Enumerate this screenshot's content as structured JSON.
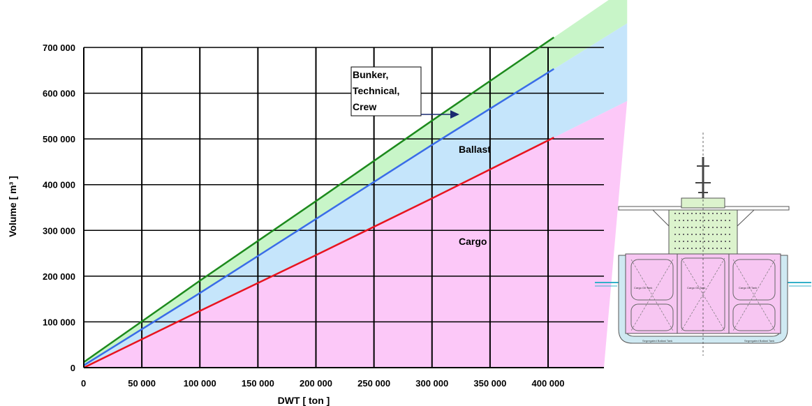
{
  "chart_data": {
    "type": "area",
    "title": "",
    "xlabel": "DWT [ ton ]",
    "ylabel": "Volume [ m³ ]",
    "xlim": [
      0,
      400000
    ],
    "ylim": [
      0,
      700000
    ],
    "x_ticks": [
      0,
      50000,
      100000,
      150000,
      200000,
      250000,
      300000,
      350000,
      400000
    ],
    "x_tick_labels": [
      "0",
      "50 000",
      "100 000",
      "150 000",
      "200 000",
      "250 000",
      "300 000",
      "350 000",
      "400 000"
    ],
    "y_ticks": [
      0,
      100000,
      200000,
      300000,
      400000,
      500000,
      600000,
      700000
    ],
    "y_tick_labels": [
      "0",
      "100 000",
      "200 000",
      "300 000",
      "400 000",
      "500 000",
      "600 000",
      "700 000"
    ],
    "grid": true,
    "series": [
      {
        "color": "#e8141e",
        "x": [
          0,
          100000,
          200000,
          300000,
          405000
        ],
        "values": [
          0,
          124000,
          246000,
          370000,
          503000
        ]
      },
      {
        "color": "#3a6ce8",
        "x": [
          0,
          100000,
          200000,
          300000,
          405000
        ],
        "values": [
          5000,
          163000,
          325000,
          487000,
          653000
        ]
      },
      {
        "color": "#1d8a1d",
        "x": [
          0,
          100000,
          200000,
          300000,
          405000
        ],
        "values": [
          12000,
          190000,
          364000,
          540000,
          722000
        ]
      }
    ],
    "bands": [
      {
        "label": "Cargo",
        "color": "#fcc8f8"
      },
      {
        "label": "Ballast",
        "color": "#c5e5fb"
      },
      {
        "label": "Bunker,\nTechnical,\nCrew",
        "color": "#c8f5c8"
      }
    ],
    "annotations": [
      {
        "text": "Ballast",
        "x": 332000,
        "y": 478000
      },
      {
        "text": "Cargo",
        "x": 332000,
        "y": 272000
      }
    ],
    "callout": {
      "lines": [
        "Bunker,",
        "Technical,",
        "Crew"
      ],
      "arrow_to": {
        "x": 330000,
        "y": 550000
      }
    }
  },
  "ship_diagram": {
    "labels": [
      "Cargo Oil Tank",
      "Cargo Oil Tank",
      "Cargo Oil Tank",
      "Segregated Ballast Tank",
      "Segregated Ballast Tank"
    ]
  }
}
